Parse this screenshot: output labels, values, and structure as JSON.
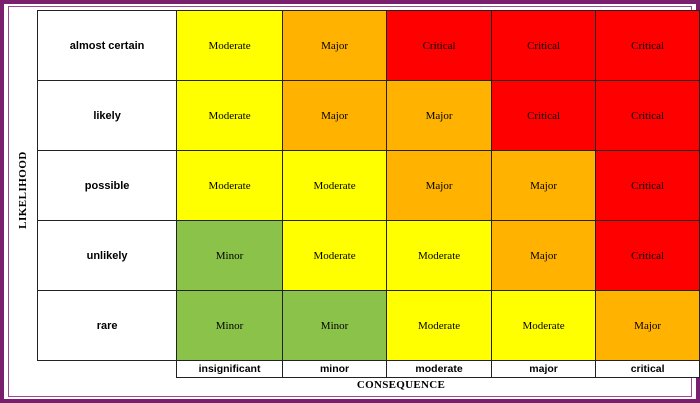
{
  "y_axis_label": "LIKELIHOOD",
  "x_axis_label": "CONSEQUENCE",
  "colors": {
    "Minor": "#8bc34a",
    "Moderate": "#ffff00",
    "Major": "#ffb300",
    "Critical": "#ff0000"
  },
  "consequences": [
    "insignificant",
    "minor",
    "moderate",
    "major",
    "critical"
  ],
  "rows": [
    {
      "likelihood": "almost certain",
      "cells": [
        "Moderate",
        "Major",
        "Critical",
        "Critical",
        "Critical"
      ]
    },
    {
      "likelihood": "likely",
      "cells": [
        "Moderate",
        "Major",
        "Major",
        "Critical",
        "Critical"
      ]
    },
    {
      "likelihood": "possible",
      "cells": [
        "Moderate",
        "Moderate",
        "Major",
        "Major",
        "Critical"
      ]
    },
    {
      "likelihood": "unlikely",
      "cells": [
        "Minor",
        "Moderate",
        "Moderate",
        "Major",
        "Critical"
      ]
    },
    {
      "likelihood": "rare",
      "cells": [
        "Minor",
        "Minor",
        "Moderate",
        "Moderate",
        "Major"
      ]
    }
  ]
}
